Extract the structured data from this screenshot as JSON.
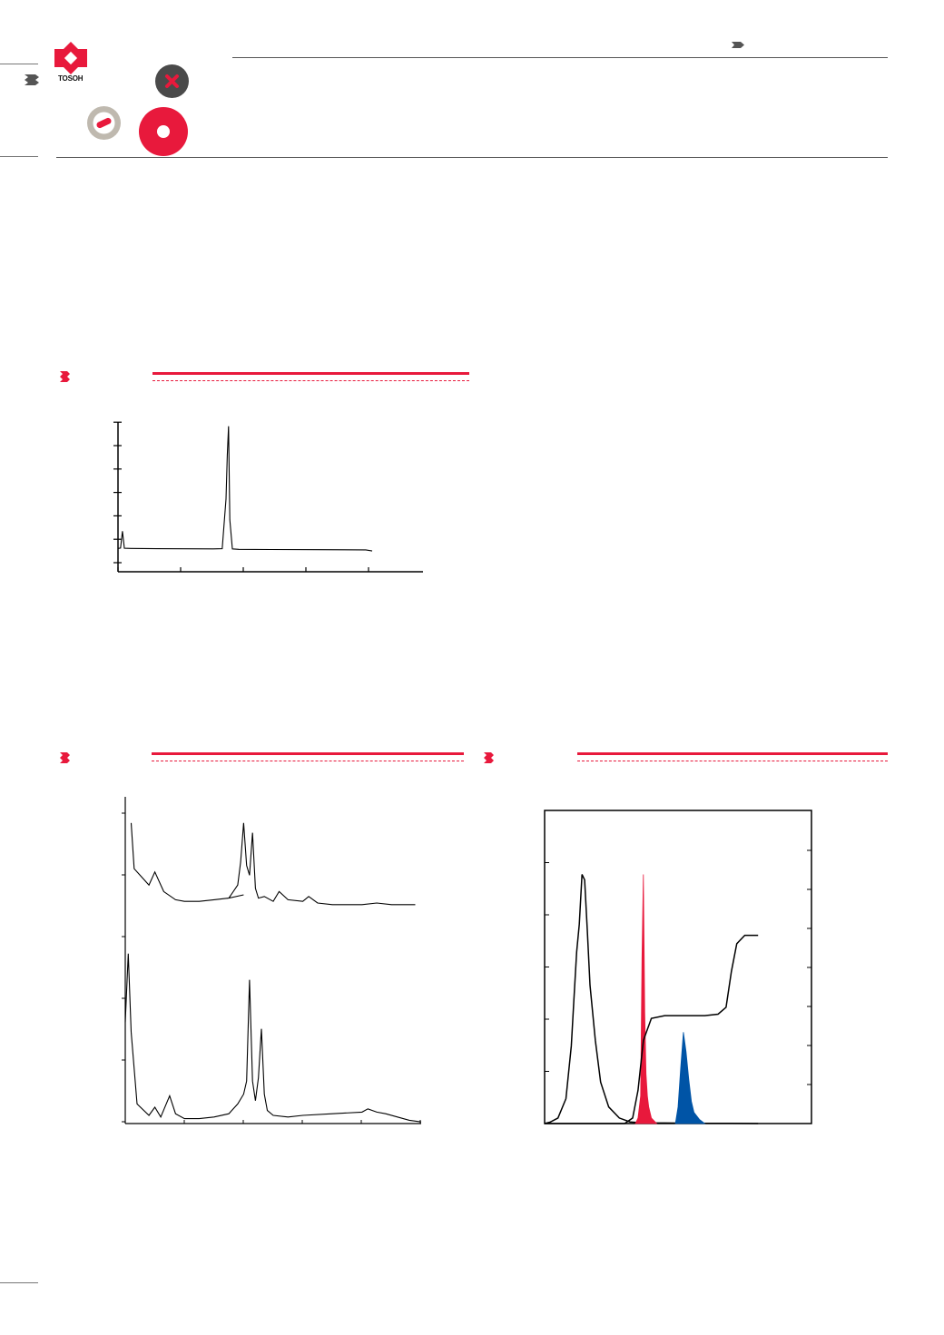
{
  "brand": {
    "name": "TOSOH",
    "red": "#e8193c",
    "dark": "#4a4a4a",
    "grey": "#bfb9af"
  },
  "icons": [
    "tosoh-logo",
    "chevron-double-icon",
    "x-badge-icon",
    "minus-badge-icon",
    "circle-badge-icon"
  ],
  "figure1": {
    "chart_data": {
      "type": "line",
      "description_series": [
        {
          "x": [
            0,
            0.02,
            0.035,
            0.05,
            0.1,
            0.3,
            0.75,
            0.82,
            0.85,
            0.86,
            0.87,
            0.88,
            0.9,
            0.95,
            1.2,
            1.6,
            1.95,
            2.0
          ],
          "y": [
            0.12,
            0.14,
            0.95,
            0.13,
            0.12,
            0.11,
            0.1,
            0.11,
            2.5,
            4.6,
            6.0,
            1.5,
            0.1,
            0.08,
            0.07,
            0.06,
            0.05,
            0.0
          ]
        }
      ],
      "xlim": [
        0,
        2.4
      ],
      "ylim": [
        -1,
        6.2
      ],
      "x_ticks": 5,
      "y_ticks": 7,
      "grid": false
    }
  },
  "figure2": {
    "chart_data": {
      "type": "line",
      "series": [
        {
          "x": [
            0.02,
            0.03,
            0.05,
            0.08,
            0.1,
            0.13,
            0.17,
            0.2,
            0.25,
            0.3,
            0.35,
            0.4,
            0.35,
            0.38,
            0.39,
            0.4,
            0.41,
            0.42,
            0.43,
            0.44,
            0.45,
            0.47,
            0.5,
            0.52,
            0.55,
            0.6,
            0.62,
            0.65,
            0.7,
            0.75,
            0.8,
            0.85,
            0.9,
            0.95,
            0.98
          ],
          "y": [
            9.2,
            7.8,
            7.6,
            7.3,
            7.7,
            7.1,
            6.85,
            6.8,
            6.8,
            6.85,
            6.9,
            7.0,
            6.9,
            7.3,
            8.0,
            9.2,
            7.9,
            7.6,
            8.9,
            7.2,
            6.9,
            6.95,
            6.8,
            7.1,
            6.85,
            6.8,
            6.95,
            6.75,
            6.7,
            6.7,
            6.7,
            6.75,
            6.7,
            6.7,
            6.7
          ]
        },
        {
          "x": [
            0.0,
            0.01,
            0.02,
            0.04,
            0.08,
            0.1,
            0.12,
            0.15,
            0.17,
            0.2,
            0.25,
            0.3,
            0.35,
            0.38,
            0.4,
            0.41,
            0.42,
            0.43,
            0.44,
            0.45,
            0.46,
            0.47,
            0.48,
            0.5,
            0.55,
            0.6,
            0.7,
            0.8,
            0.82,
            0.85,
            0.88,
            0.92,
            0.96,
            1.0
          ],
          "y": [
            3.1,
            5.2,
            2.8,
            0.6,
            0.25,
            0.5,
            0.2,
            0.85,
            0.3,
            0.15,
            0.15,
            0.2,
            0.3,
            0.6,
            0.9,
            1.3,
            4.4,
            1.3,
            0.7,
            1.4,
            2.9,
            0.9,
            0.4,
            0.25,
            0.2,
            0.25,
            0.3,
            0.35,
            0.45,
            0.35,
            0.3,
            0.2,
            0.1,
            0.05
          ]
        }
      ],
      "xlim": [
        0,
        1
      ],
      "ylim": [
        0,
        10
      ],
      "x_ticks": 6,
      "y_ticks": 6,
      "grid": false
    }
  },
  "figure3": {
    "chart_data": {
      "type": "area",
      "series": [
        {
          "name": "",
          "color": "#000000",
          "x": [
            0,
            0.02,
            0.05,
            0.08,
            0.1,
            0.11,
            0.12,
            0.13,
            0.14,
            0.15,
            0.16,
            0.17,
            0.19,
            0.21,
            0.24,
            0.28,
            0.32,
            0.36,
            0.4,
            0.45,
            0.5,
            0.6,
            0.7,
            0.8
          ],
          "y": [
            0,
            0.5,
            2,
            9,
            28,
            45,
            62,
            72,
            90,
            88,
            70,
            50,
            30,
            15,
            6,
            2,
            0.6,
            0.3,
            0.2,
            0.2,
            0.15,
            0.1,
            0.05,
            0
          ]
        },
        {
          "name": "",
          "color": "#e8193c",
          "fill": true,
          "x": [
            0.34,
            0.35,
            0.36,
            0.365,
            0.37,
            0.375,
            0.38,
            0.385,
            0.39,
            0.4,
            0.42
          ],
          "y": [
            0,
            2,
            10,
            60,
            90,
            40,
            18,
            10,
            6,
            2,
            0
          ]
        },
        {
          "name": "",
          "color": "#0054a6",
          "fill": true,
          "x": [
            0.49,
            0.5,
            0.51,
            0.52,
            0.53,
            0.54,
            0.55,
            0.56,
            0.58,
            0.6
          ],
          "y": [
            0,
            6,
            20,
            33,
            26,
            16,
            8,
            4,
            1.5,
            0
          ]
        },
        {
          "name": "",
          "color": "#000000",
          "kind": "gradient",
          "x": [
            0.0,
            0.3,
            0.33,
            0.35,
            0.37,
            0.4,
            0.45,
            0.5,
            0.55,
            0.6,
            0.65,
            0.68,
            0.7,
            0.72,
            0.75,
            0.8
          ],
          "y": [
            0,
            0,
            2,
            12,
            30,
            38,
            39,
            39,
            39,
            39,
            39.5,
            42,
            55,
            65,
            68,
            68
          ]
        }
      ],
      "xlim": [
        0,
        1
      ],
      "ylim": [
        0,
        100
      ],
      "y_ticks_right": 7,
      "y_ticks_left": 6,
      "grid": false
    }
  }
}
